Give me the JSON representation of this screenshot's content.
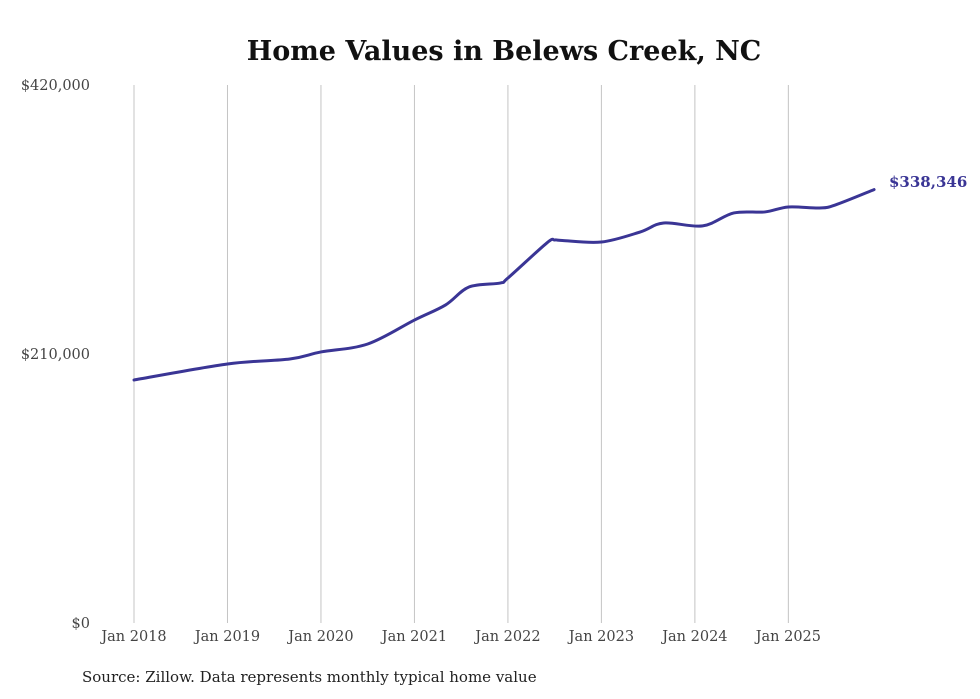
{
  "chart_data": {
    "type": "line",
    "title": "Home Values in Belews Creek, NC",
    "xlabel": "",
    "ylabel": "",
    "ylim": [
      0,
      420000
    ],
    "yticks": [
      {
        "value": 0,
        "label": "$0"
      },
      {
        "value": 210000,
        "label": "$210,000"
      },
      {
        "value": 420000,
        "label": "$420,000"
      }
    ],
    "xticks": [
      {
        "month": 0,
        "label": "Jan 2018"
      },
      {
        "month": 12,
        "label": "Jan 2019"
      },
      {
        "month": 24,
        "label": "Jan 2020"
      },
      {
        "month": 36,
        "label": "Jan 2021"
      },
      {
        "month": 48,
        "label": "Jan 2022"
      },
      {
        "month": 60,
        "label": "Jan 2023"
      },
      {
        "month": 72,
        "label": "Jan 2024"
      },
      {
        "month": 84,
        "label": "Jan 2025"
      }
    ],
    "x_unit": "months since Jan 2018",
    "grid": "vertical",
    "color": "#3a3595",
    "series": [
      {
        "name": "Typical home value",
        "points": [
          [
            0,
            189700
          ],
          [
            12,
            202200
          ],
          [
            20,
            206100
          ],
          [
            24,
            211600
          ],
          [
            30,
            217800
          ],
          [
            36,
            236500
          ],
          [
            40,
            248300
          ],
          [
            43,
            262300
          ],
          [
            47,
            265400
          ],
          [
            48,
            269300
          ],
          [
            53,
            296700
          ],
          [
            54,
            299000
          ],
          [
            55,
            298600
          ],
          [
            60,
            297400
          ],
          [
            65,
            305300
          ],
          [
            68,
            312300
          ],
          [
            73,
            310000
          ],
          [
            77,
            320100
          ],
          [
            81,
            320900
          ],
          [
            84,
            324800
          ],
          [
            88,
            324000
          ],
          [
            90,
            326300
          ],
          [
            95,
            338346
          ]
        ]
      }
    ],
    "end_label": "$338,346",
    "source": "Source: Zillow. Data represents monthly typical home value"
  }
}
